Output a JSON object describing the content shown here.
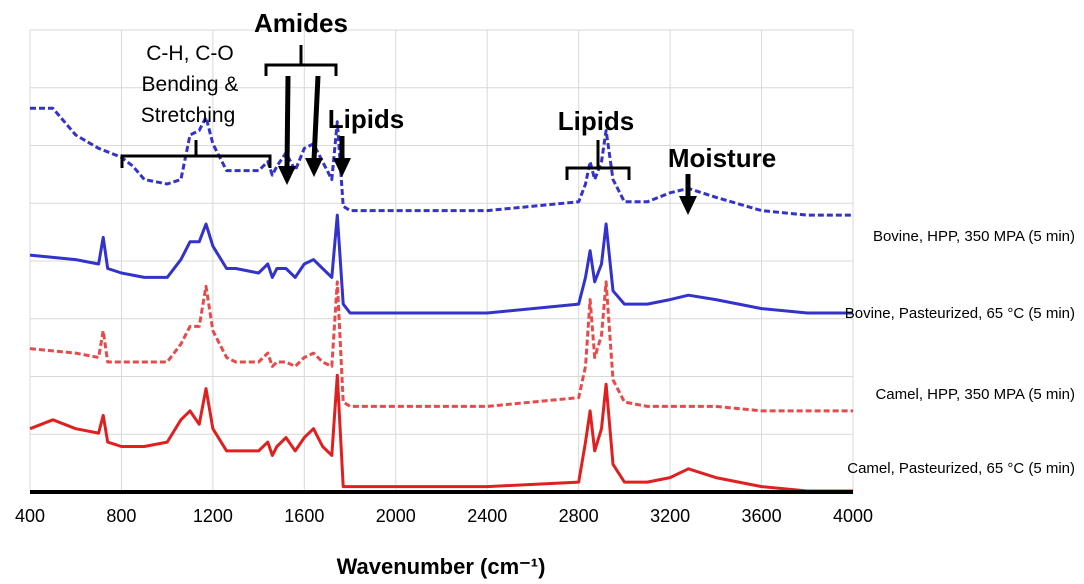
{
  "chart_data": {
    "type": "line",
    "xlabel": "Wavenumber (cm⁻¹)",
    "xlim": [
      400,
      4000
    ],
    "x_ticks": [
      400,
      800,
      1200,
      1600,
      2000,
      2400,
      2800,
      3200,
      3600,
      4000
    ],
    "grid": true,
    "series": [
      {
        "name": "Bovine, HPP, 350 MPA (5 min)",
        "color": "#3333cc",
        "dashed": true,
        "x": [
          400,
          500,
          600,
          700,
          800,
          850,
          900,
          1000,
          1060,
          1100,
          1140,
          1170,
          1200,
          1260,
          1300,
          1400,
          1440,
          1460,
          1480,
          1520,
          1560,
          1600,
          1640,
          1680,
          1720,
          1744,
          1770,
          1800,
          2000,
          2400,
          2800,
          2830,
          2850,
          2870,
          2900,
          2920,
          2950,
          3000,
          3100,
          3200,
          3280,
          3400,
          3600,
          3800,
          4000
        ],
        "y": [
          0.86,
          0.86,
          0.8,
          0.77,
          0.75,
          0.73,
          0.7,
          0.69,
          0.7,
          0.8,
          0.81,
          0.84,
          0.78,
          0.72,
          0.72,
          0.72,
          0.74,
          0.71,
          0.73,
          0.76,
          0.72,
          0.77,
          0.78,
          0.74,
          0.7,
          0.83,
          0.64,
          0.63,
          0.63,
          0.63,
          0.65,
          0.69,
          0.74,
          0.7,
          0.74,
          0.81,
          0.7,
          0.65,
          0.65,
          0.67,
          0.68,
          0.66,
          0.63,
          0.62,
          0.62
        ]
      },
      {
        "name": "Bovine, Pasteurized, 65 °C (5 min)",
        "color": "#3333cc",
        "dashed": false,
        "x": [
          400,
          600,
          700,
          720,
          740,
          800,
          900,
          1000,
          1060,
          1100,
          1140,
          1170,
          1200,
          1260,
          1300,
          1400,
          1440,
          1460,
          1480,
          1520,
          1560,
          1600,
          1640,
          1680,
          1720,
          1744,
          1770,
          1800,
          2000,
          2400,
          2800,
          2830,
          2850,
          2870,
          2900,
          2920,
          2950,
          3000,
          3100,
          3200,
          3280,
          3400,
          3600,
          3800,
          4000
        ],
        "y": [
          0.53,
          0.52,
          0.51,
          0.57,
          0.5,
          0.49,
          0.48,
          0.48,
          0.52,
          0.56,
          0.56,
          0.6,
          0.55,
          0.5,
          0.5,
          0.49,
          0.51,
          0.48,
          0.5,
          0.5,
          0.48,
          0.51,
          0.52,
          0.5,
          0.48,
          0.62,
          0.42,
          0.4,
          0.4,
          0.4,
          0.42,
          0.48,
          0.54,
          0.47,
          0.51,
          0.6,
          0.45,
          0.42,
          0.42,
          0.43,
          0.44,
          0.43,
          0.41,
          0.4,
          0.4
        ]
      },
      {
        "name": "Camel, HPP, 350 MPA (5 min)",
        "color": "#e84a4a",
        "dashed": true,
        "x": [
          400,
          600,
          700,
          720,
          740,
          800,
          900,
          1000,
          1060,
          1100,
          1140,
          1170,
          1200,
          1260,
          1300,
          1400,
          1440,
          1460,
          1480,
          1520,
          1560,
          1600,
          1640,
          1680,
          1720,
          1744,
          1770,
          1800,
          2000,
          2400,
          2800,
          2830,
          2850,
          2870,
          2900,
          2920,
          2950,
          3000,
          3100,
          3200,
          3280,
          3400,
          3600,
          3800,
          4000
        ],
        "y": [
          0.32,
          0.31,
          0.3,
          0.36,
          0.29,
          0.29,
          0.29,
          0.29,
          0.33,
          0.37,
          0.37,
          0.46,
          0.36,
          0.3,
          0.29,
          0.29,
          0.31,
          0.28,
          0.29,
          0.29,
          0.28,
          0.3,
          0.31,
          0.29,
          0.28,
          0.47,
          0.2,
          0.19,
          0.19,
          0.19,
          0.21,
          0.28,
          0.43,
          0.3,
          0.35,
          0.47,
          0.25,
          0.2,
          0.19,
          0.19,
          0.19,
          0.19,
          0.18,
          0.18,
          0.18
        ]
      },
      {
        "name": "Camel, Pasteurized, 65 °C (5 min)",
        "color": "#e02020",
        "dashed": false,
        "x": [
          400,
          500,
          600,
          700,
          720,
          740,
          800,
          900,
          1000,
          1060,
          1100,
          1140,
          1170,
          1200,
          1260,
          1300,
          1400,
          1440,
          1460,
          1480,
          1520,
          1560,
          1600,
          1640,
          1680,
          1720,
          1744,
          1770,
          1800,
          2000,
          2400,
          2800,
          2830,
          2850,
          2870,
          2900,
          2920,
          2950,
          3000,
          3100,
          3200,
          3280,
          3400,
          3600,
          3800,
          4000
        ],
        "y": [
          0.14,
          0.16,
          0.14,
          0.13,
          0.17,
          0.11,
          0.1,
          0.1,
          0.11,
          0.16,
          0.18,
          0.15,
          0.23,
          0.14,
          0.09,
          0.09,
          0.09,
          0.11,
          0.08,
          0.1,
          0.12,
          0.09,
          0.12,
          0.14,
          0.1,
          0.08,
          0.26,
          0.01,
          0.01,
          0.01,
          0.01,
          0.02,
          0.11,
          0.18,
          0.09,
          0.14,
          0.24,
          0.06,
          0.02,
          0.02,
          0.03,
          0.05,
          0.03,
          0.01,
          0.0,
          0.0
        ]
      }
    ],
    "annotations": {
      "ch_co_line1": "C-H, C-O",
      "ch_co_line2": "Bending &",
      "ch_co_line3": "Stretching",
      "amides": "Amides",
      "lipids_left": "Lipids",
      "lipids_right": "Lipids",
      "moisture": "Moisture"
    }
  }
}
